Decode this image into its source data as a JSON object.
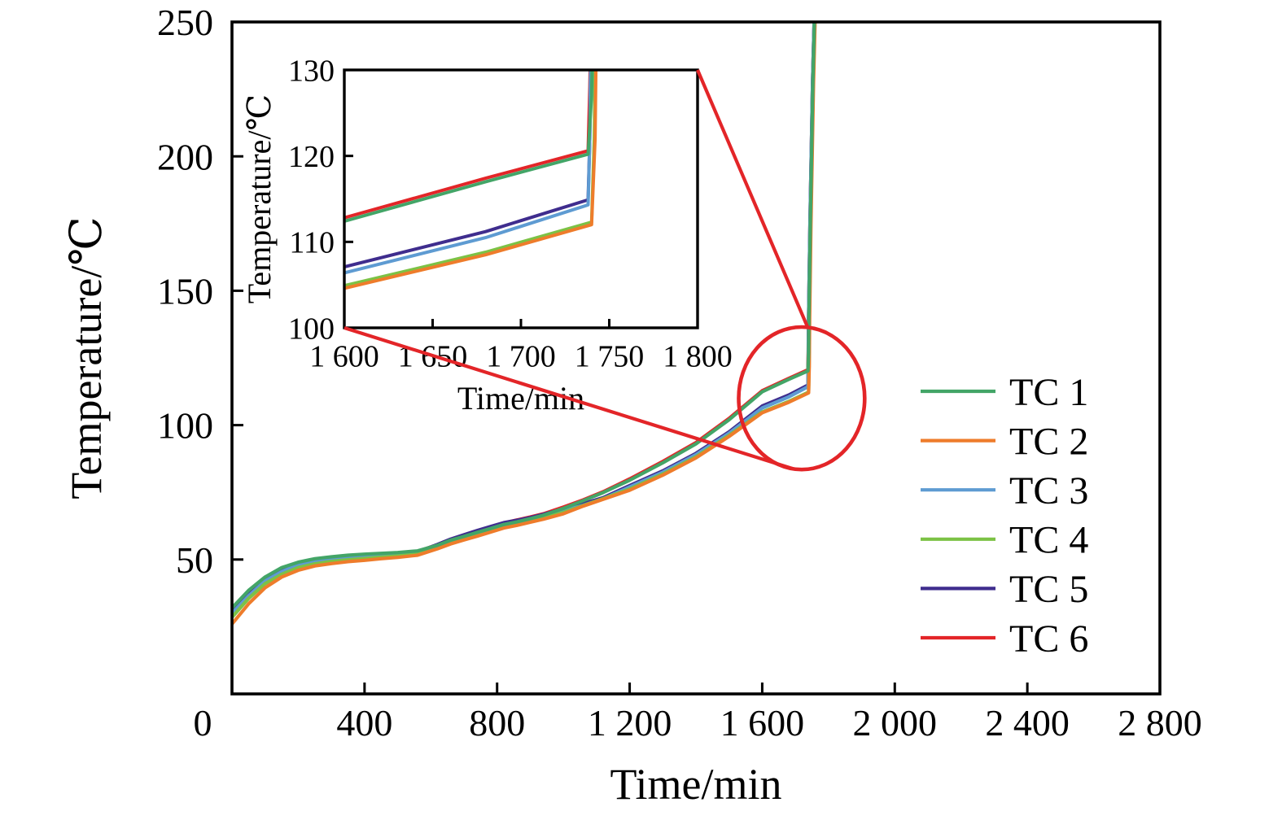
{
  "chart_data": {
    "type": "line",
    "title": "",
    "xlabel": "Time/min",
    "ylabel": "Temperature/℃",
    "xlim": [
      0,
      2800
    ],
    "ylim": [
      0,
      250
    ],
    "grid": false,
    "xticks": {
      "values": [
        0,
        400,
        800,
        1200,
        1600,
        2000,
        2400,
        2800
      ],
      "labels": [
        "0",
        "400",
        "800",
        "1 200",
        "1 600",
        "2 000",
        "2 400",
        "2 800"
      ]
    },
    "yticks": {
      "values": [
        50,
        100,
        150,
        200,
        250
      ],
      "labels": [
        "50",
        "100",
        "150",
        "200",
        "250"
      ]
    },
    "legend": {
      "position": "right-middle",
      "entries": [
        {
          "label": "TC 1",
          "color": "#43A567"
        },
        {
          "label": "TC 2",
          "color": "#EE7C2B"
        },
        {
          "label": "TC 3",
          "color": "#5E9BD2"
        },
        {
          "label": "TC 4",
          "color": "#7CC245"
        },
        {
          "label": "TC 5",
          "color": "#3F2D8E"
        },
        {
          "label": "TC 6",
          "color": "#E32528"
        }
      ]
    },
    "series": [
      {
        "name": "TC 1",
        "color": "#43A567",
        "points": [
          [
            0,
            32
          ],
          [
            50,
            38.5
          ],
          [
            100,
            43.5
          ],
          [
            150,
            47
          ],
          [
            200,
            49
          ],
          [
            250,
            50.3
          ],
          [
            300,
            51
          ],
          [
            350,
            51.6
          ],
          [
            400,
            52
          ],
          [
            450,
            52.3
          ],
          [
            500,
            52.6
          ],
          [
            560,
            53.2
          ],
          [
            620,
            55.3
          ],
          [
            660,
            57.2
          ],
          [
            700,
            58.6
          ],
          [
            740,
            60.1
          ],
          [
            780,
            61.5
          ],
          [
            820,
            63
          ],
          [
            860,
            64
          ],
          [
            900,
            65.2
          ],
          [
            940,
            66.5
          ],
          [
            1000,
            69
          ],
          [
            1060,
            71.9
          ],
          [
            1120,
            74.9
          ],
          [
            1200,
            79.5
          ],
          [
            1300,
            86
          ],
          [
            1400,
            93
          ],
          [
            1500,
            102
          ],
          [
            1600,
            112.4
          ],
          [
            1680,
            117
          ],
          [
            1738,
            120.2
          ],
          [
            1740,
            127
          ],
          [
            1741,
            140
          ],
          [
            1745,
            175
          ],
          [
            1753,
            228
          ],
          [
            1759,
            258
          ]
        ]
      },
      {
        "name": "TC 2",
        "color": "#EE7C2B",
        "points": [
          [
            0,
            26
          ],
          [
            50,
            33.5
          ],
          [
            100,
            39.5
          ],
          [
            150,
            43.5
          ],
          [
            200,
            46
          ],
          [
            250,
            47.6
          ],
          [
            300,
            48.5
          ],
          [
            350,
            49.2
          ],
          [
            400,
            49.7
          ],
          [
            450,
            50.3
          ],
          [
            500,
            50.8
          ],
          [
            560,
            51.6
          ],
          [
            620,
            54
          ],
          [
            660,
            55.8
          ],
          [
            700,
            57.3
          ],
          [
            740,
            58.7
          ],
          [
            780,
            60.2
          ],
          [
            820,
            61.7
          ],
          [
            860,
            62.7
          ],
          [
            900,
            63.9
          ],
          [
            940,
            65
          ],
          [
            1000,
            67
          ],
          [
            1060,
            69.9
          ],
          [
            1120,
            72.4
          ],
          [
            1200,
            75.8
          ],
          [
            1300,
            81.4
          ],
          [
            1400,
            87.8
          ],
          [
            1500,
            95.8
          ],
          [
            1600,
            104.6
          ],
          [
            1680,
            108.5
          ],
          [
            1740,
            112
          ],
          [
            1742,
            122
          ],
          [
            1743,
            140
          ],
          [
            1747,
            175
          ],
          [
            1755,
            228
          ],
          [
            1761,
            258
          ]
        ]
      },
      {
        "name": "TC 3",
        "color": "#5E9BD2",
        "points": [
          [
            0,
            30
          ],
          [
            50,
            36.5
          ],
          [
            100,
            42
          ],
          [
            150,
            45.5
          ],
          [
            200,
            48
          ],
          [
            250,
            49.3
          ],
          [
            300,
            50
          ],
          [
            350,
            50.5
          ],
          [
            400,
            51
          ],
          [
            450,
            51.4
          ],
          [
            500,
            51.8
          ],
          [
            560,
            52.5
          ],
          [
            620,
            55
          ],
          [
            660,
            57
          ],
          [
            700,
            58.5
          ],
          [
            740,
            60
          ],
          [
            780,
            61.5
          ],
          [
            820,
            63
          ],
          [
            860,
            63.9
          ],
          [
            900,
            65
          ],
          [
            940,
            66.2
          ],
          [
            1000,
            68.2
          ],
          [
            1060,
            70.2
          ],
          [
            1120,
            72.6
          ],
          [
            1200,
            77
          ],
          [
            1300,
            82.5
          ],
          [
            1400,
            89
          ],
          [
            1500,
            97
          ],
          [
            1600,
            106.4
          ],
          [
            1680,
            110.5
          ],
          [
            1738,
            114.3
          ],
          [
            1739,
            122
          ],
          [
            1740,
            140
          ],
          [
            1744,
            175
          ],
          [
            1752,
            228
          ],
          [
            1758,
            257
          ]
        ]
      },
      {
        "name": "TC 4",
        "color": "#7CC245",
        "points": [
          [
            0,
            28.5
          ],
          [
            50,
            35.5
          ],
          [
            100,
            41
          ],
          [
            150,
            44.5
          ],
          [
            200,
            47
          ],
          [
            250,
            48.4
          ],
          [
            300,
            49.3
          ],
          [
            350,
            49.9
          ],
          [
            400,
            50.4
          ],
          [
            450,
            50.9
          ],
          [
            500,
            51.3
          ],
          [
            560,
            52
          ],
          [
            620,
            54.5
          ],
          [
            660,
            56.3
          ],
          [
            700,
            57.8
          ],
          [
            740,
            59.2
          ],
          [
            780,
            60.7
          ],
          [
            820,
            62.2
          ],
          [
            860,
            63.2
          ],
          [
            900,
            64.4
          ],
          [
            940,
            65.5
          ],
          [
            1000,
            67.5
          ],
          [
            1060,
            70.1
          ],
          [
            1120,
            72.7
          ],
          [
            1200,
            76.2
          ],
          [
            1300,
            81.8
          ],
          [
            1400,
            88.2
          ],
          [
            1500,
            96.2
          ],
          [
            1600,
            104.9
          ],
          [
            1680,
            108.8
          ],
          [
            1740,
            112.3
          ],
          [
            1741.5,
            122
          ],
          [
            1742.5,
            140
          ],
          [
            1746,
            175
          ],
          [
            1754,
            228
          ],
          [
            1760,
            257
          ]
        ]
      },
      {
        "name": "TC 5",
        "color": "#3F2D8E",
        "points": [
          [
            0,
            30.5
          ],
          [
            50,
            37
          ],
          [
            100,
            42.5
          ],
          [
            150,
            46
          ],
          [
            200,
            48.3
          ],
          [
            250,
            49.6
          ],
          [
            300,
            50.3
          ],
          [
            350,
            50.8
          ],
          [
            400,
            51.3
          ],
          [
            450,
            51.7
          ],
          [
            500,
            52.1
          ],
          [
            560,
            52.8
          ],
          [
            620,
            55.6
          ],
          [
            660,
            57.6
          ],
          [
            700,
            59.2
          ],
          [
            740,
            60.8
          ],
          [
            780,
            62.3
          ],
          [
            820,
            63.7
          ],
          [
            860,
            64.6
          ],
          [
            900,
            65.6
          ],
          [
            940,
            66.8
          ],
          [
            1000,
            68.8
          ],
          [
            1060,
            70.8
          ],
          [
            1120,
            73
          ],
          [
            1200,
            77.5
          ],
          [
            1300,
            83
          ],
          [
            1400,
            89.5
          ],
          [
            1500,
            97.5
          ],
          [
            1600,
            107.1
          ],
          [
            1680,
            111.2
          ],
          [
            1738,
            114.9
          ],
          [
            1739,
            122
          ],
          [
            1740,
            140
          ],
          [
            1744,
            175
          ],
          [
            1752,
            228
          ],
          [
            1758,
            257
          ]
        ]
      },
      {
        "name": "TC 6",
        "color": "#E32528",
        "points": [
          [
            0,
            31.5
          ],
          [
            50,
            38
          ],
          [
            100,
            43
          ],
          [
            150,
            46.5
          ],
          [
            200,
            48.7
          ],
          [
            250,
            50
          ],
          [
            300,
            50.7
          ],
          [
            350,
            51.2
          ],
          [
            400,
            51.6
          ],
          [
            450,
            52
          ],
          [
            500,
            52.3
          ],
          [
            560,
            53
          ],
          [
            620,
            55.5
          ],
          [
            660,
            57.5
          ],
          [
            700,
            59
          ],
          [
            740,
            60.6
          ],
          [
            780,
            62.1
          ],
          [
            820,
            63.6
          ],
          [
            860,
            64.7
          ],
          [
            900,
            65.8
          ],
          [
            940,
            67
          ],
          [
            1000,
            69.5
          ],
          [
            1060,
            72.2
          ],
          [
            1120,
            75.2
          ],
          [
            1200,
            80
          ],
          [
            1300,
            86.5
          ],
          [
            1400,
            93.5
          ],
          [
            1500,
            102.5
          ],
          [
            1600,
            112.8
          ],
          [
            1680,
            117.4
          ],
          [
            1738,
            120.6
          ],
          [
            1739,
            128
          ],
          [
            1740,
            140
          ],
          [
            1744,
            175
          ],
          [
            1752,
            228
          ],
          [
            1758,
            257
          ]
        ]
      }
    ],
    "inset": {
      "xlabel": "Time/min",
      "ylabel": "Temperature/℃",
      "xlim": [
        1600,
        1800
      ],
      "ylim": [
        100,
        130
      ],
      "xticks": {
        "values": [
          1600,
          1650,
          1700,
          1750,
          1800
        ],
        "labels": [
          "1 600",
          "1 650",
          "1 700",
          "1 750",
          "1 800"
        ]
      },
      "yticks": {
        "values": [
          100,
          110,
          120,
          130
        ],
        "labels": [
          "100",
          "110",
          "120",
          "130"
        ]
      }
    },
    "annotations": {
      "zoom_circle": {
        "center_t": 1719,
        "center_temp": 110,
        "radius_t": 190,
        "radius_temp": 26.5,
        "color": "#E32528"
      },
      "connectors": [
        {
          "from": "inset-top-right-corner",
          "to_circle_angle_deg": 275.5
        },
        {
          "from": "inset-bottom-left-corner",
          "to_circle_angle_deg": 97.5
        }
      ]
    }
  }
}
